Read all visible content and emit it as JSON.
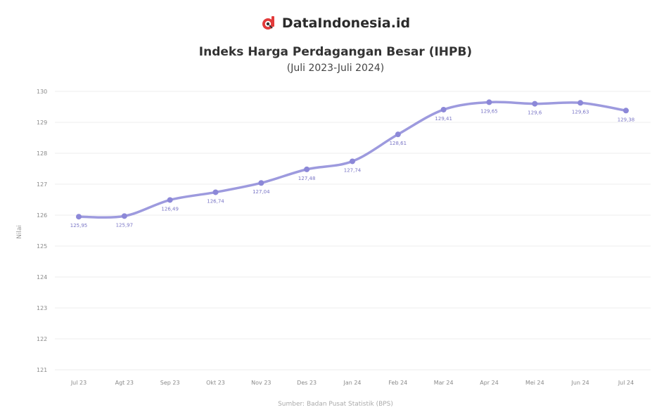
{
  "brand": {
    "name": "DataIndonesia.id",
    "logo_icon": "dataindonesia-logo",
    "logo_color": "#e23b3b"
  },
  "chart_data": {
    "type": "line",
    "title": "Indeks Harga Perdagangan Besar (IHPB)",
    "subtitle": "(Juli 2023-Juli 2024)",
    "ylabel": "Nilai",
    "source": "Sumber: Badan Pusat Statistik (BPS)",
    "categories": [
      "Jul 23",
      "Agt 23",
      "Sep 23",
      "Okt 23",
      "Nov 23",
      "Des 23",
      "Jan 24",
      "Feb 24",
      "Mar 24",
      "Apr 24",
      "Mei 24",
      "Jun 24",
      "Jul 24"
    ],
    "yticks": [
      "121",
      "122",
      "123",
      "124",
      "125",
      "126",
      "127",
      "128",
      "129",
      "130"
    ],
    "ylim": [
      121,
      130
    ],
    "series": [
      {
        "values": [
          125.95,
          125.97,
          126.49,
          126.74,
          127.04,
          127.48,
          127.74,
          128.61,
          129.41,
          129.65,
          129.6,
          129.63,
          129.38
        ],
        "labels": [
          "125,95",
          "125,97",
          "126,49",
          "126,74",
          "127,04",
          "127,48",
          "127,74",
          "128,61",
          "129,41",
          "129,65",
          "129,6",
          "129,63",
          "129,38"
        ]
      }
    ],
    "grid": true,
    "line_color": "#8c88d8"
  }
}
